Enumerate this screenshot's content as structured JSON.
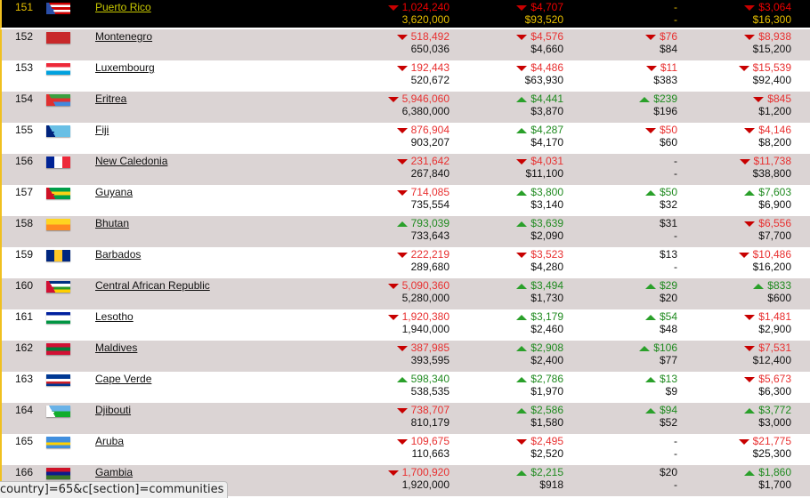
{
  "rows": [
    {
      "rank": "151",
      "name": "Puerto Rico",
      "flag": [
        "#c00",
        "#fff",
        "#c00",
        "#fff",
        "#c00"
      ],
      "tri": "#2a4ea8",
      "hl": true,
      "cells": [
        [
          "1,024,240",
          "d",
          "3,620,000"
        ],
        [
          "$4,707",
          "d",
          "$93,520"
        ],
        [
          "-",
          "",
          "-"
        ],
        [
          "$3,064",
          "d",
          "$16,300"
        ]
      ]
    },
    {
      "rank": "152",
      "name": "Montenegro",
      "flag": [
        "#c8282a"
      ],
      "cells": [
        [
          "518,492",
          "d",
          "650,036"
        ],
        [
          "$4,576",
          "d",
          "$4,660"
        ],
        [
          "$76",
          "d",
          "$84"
        ],
        [
          "$8,938",
          "d",
          "$15,200"
        ]
      ]
    },
    {
      "rank": "153",
      "name": "Luxembourg",
      "flag": [
        "#ed2939",
        "#fff",
        "#00a1de"
      ],
      "cells": [
        [
          "192,443",
          "d",
          "520,672"
        ],
        [
          "$4,486",
          "d",
          "$63,930"
        ],
        [
          "$11",
          "d",
          "$383"
        ],
        [
          "$15,539",
          "d",
          "$92,400"
        ]
      ]
    },
    {
      "rank": "154",
      "name": "Eritrea",
      "flag": [
        "#3aa040",
        "#e03030",
        "#4189dd"
      ],
      "tri": "#e03030",
      "cells": [
        [
          "5,946,060",
          "d",
          "6,380,000"
        ],
        [
          "$4,441",
          "u",
          "$3,870"
        ],
        [
          "$239",
          "u",
          "$196"
        ],
        [
          "$845",
          "d",
          "$1,200"
        ]
      ]
    },
    {
      "rank": "155",
      "name": "Fiji",
      "flag": [
        "#68bfe5"
      ],
      "tri": "#00247d",
      "cells": [
        [
          "876,904",
          "d",
          "903,207"
        ],
        [
          "$4,287",
          "u",
          "$4,170"
        ],
        [
          "$50",
          "d",
          "$60"
        ],
        [
          "$4,146",
          "d",
          "$8,200"
        ]
      ]
    },
    {
      "rank": "156",
      "name": "New Caledonia",
      "flag": [
        "#002395",
        "#fff",
        "#ed2939"
      ],
      "vert": true,
      "cells": [
        [
          "231,642",
          "d",
          "267,840"
        ],
        [
          "$4,031",
          "d",
          "$11,100"
        ],
        [
          "-",
          "",
          "-"
        ],
        [
          "$11,738",
          "d",
          "$38,800"
        ]
      ]
    },
    {
      "rank": "157",
      "name": "Guyana",
      "flag": [
        "#009e49",
        "#fcd116",
        "#009e49"
      ],
      "tri": "#ce1126",
      "cells": [
        [
          "714,085",
          "d",
          "735,554"
        ],
        [
          "$3,800",
          "u",
          "$3,140"
        ],
        [
          "$50",
          "u",
          "$32"
        ],
        [
          "$7,603",
          "u",
          "$6,900"
        ]
      ]
    },
    {
      "rank": "158",
      "name": "Bhutan",
      "flag": [
        "#ffd520",
        "#ff8a20"
      ],
      "cells": [
        [
          "793,039",
          "u",
          "733,643"
        ],
        [
          "$3,639",
          "u",
          "$2,090"
        ],
        [
          "$31",
          "",
          "-"
        ],
        [
          "$6,556",
          "d",
          "$7,700"
        ]
      ]
    },
    {
      "rank": "159",
      "name": "Barbados",
      "flag": [
        "#00267f",
        "#ffc726",
        "#00267f"
      ],
      "vert": true,
      "cells": [
        [
          "222,219",
          "d",
          "289,680"
        ],
        [
          "$3,523",
          "d",
          "$4,280"
        ],
        [
          "$13",
          "",
          "-"
        ],
        [
          "$10,486",
          "d",
          "$16,200"
        ]
      ]
    },
    {
      "rank": "160",
      "name": "Central African Republic",
      "flag": [
        "#003082",
        "#fff",
        "#289728",
        "#ffce00"
      ],
      "tri": "#d21034",
      "cells": [
        [
          "5,090,360",
          "d",
          "5,280,000"
        ],
        [
          "$3,494",
          "u",
          "$1,730"
        ],
        [
          "$29",
          "u",
          "$20"
        ],
        [
          "$833",
          "u",
          "$600"
        ]
      ]
    },
    {
      "rank": "161",
      "name": "Lesotho",
      "flag": [
        "#00209f",
        "#fff",
        "#fff",
        "#009543"
      ],
      "cells": [
        [
          "1,920,380",
          "d",
          "1,940,000"
        ],
        [
          "$3,179",
          "u",
          "$2,460"
        ],
        [
          "$54",
          "u",
          "$48"
        ],
        [
          "$1,481",
          "d",
          "$2,900"
        ]
      ]
    },
    {
      "rank": "162",
      "name": "Maldives",
      "flag": [
        "#d21034",
        "#007e3a",
        "#d21034"
      ],
      "cells": [
        [
          "387,985",
          "d",
          "393,595"
        ],
        [
          "$2,908",
          "u",
          "$2,400"
        ],
        [
          "$106",
          "u",
          "$77"
        ],
        [
          "$7,531",
          "d",
          "$12,400"
        ]
      ]
    },
    {
      "rank": "163",
      "name": "Cape Verde",
      "flag": [
        "#003893",
        "#003893",
        "#fff",
        "#cf2027",
        "#003893"
      ],
      "cells": [
        [
          "598,340",
          "u",
          "538,535"
        ],
        [
          "$2,786",
          "u",
          "$1,970"
        ],
        [
          "$13",
          "u",
          "$9"
        ],
        [
          "$5,673",
          "d",
          "$6,300"
        ]
      ]
    },
    {
      "rank": "164",
      "name": "Djibouti",
      "flag": [
        "#6ab2e7",
        "#12ad2b"
      ],
      "tri": "#fff",
      "cells": [
        [
          "738,707",
          "d",
          "810,179"
        ],
        [
          "$2,586",
          "u",
          "$1,580"
        ],
        [
          "$94",
          "u",
          "$52"
        ],
        [
          "$3,772",
          "u",
          "$3,000"
        ]
      ]
    },
    {
      "rank": "165",
      "name": "Aruba",
      "flag": [
        "#418fde",
        "#418fde",
        "#ffd100",
        "#418fde"
      ],
      "cells": [
        [
          "109,675",
          "d",
          "110,663"
        ],
        [
          "$2,495",
          "d",
          "$2,520"
        ],
        [
          "-",
          "",
          "-"
        ],
        [
          "$21,775",
          "d",
          "$25,300"
        ]
      ]
    },
    {
      "rank": "166",
      "name": "Gambia",
      "flag": [
        "#ce1126",
        "#0c1c8c",
        "#3a7728"
      ],
      "cells": [
        [
          "1,700,920",
          "d",
          "1,920,000"
        ],
        [
          "$2,215",
          "u",
          "$918"
        ],
        [
          "$20",
          "",
          "-"
        ],
        [
          "$1,860",
          "u",
          "$1,700"
        ]
      ]
    }
  ],
  "status_bar": "country]=65&c[section]=communities"
}
